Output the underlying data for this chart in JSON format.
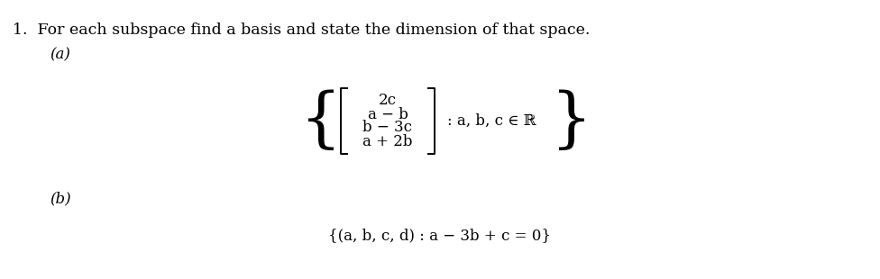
{
  "title_text": "1.  For each subspace find a basis and state the dimension of that space.",
  "part_a_label": "(a)",
  "part_b_label": "(b)",
  "bg_color": "#ffffff",
  "text_color": "#000000",
  "font_size_title": 12.5,
  "font_size_labels": 12,
  "font_size_math": 12,
  "matrix_rows": [
    "2c",
    "a − b",
    "b − 3c",
    "a + 2b"
  ],
  "set_condition": ": a, b, c ∈ ℝ",
  "tuple_set": "{(a, b, c, d) : a − 3b + c = 0}"
}
